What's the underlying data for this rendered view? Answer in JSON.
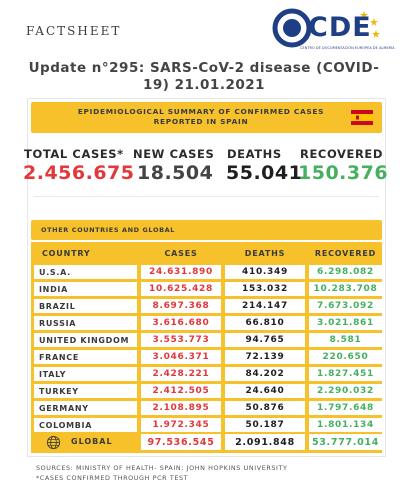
{
  "header": {
    "factsheet_label": "FACTSHEET",
    "logo_text": "CDE",
    "logo_subtitle": "CENTRO DE DOCUMENTACIÓN EUROPEA DE ALMERÍA",
    "update_title": "Update n°295: SARS-CoV-2 disease (COVID-19) 21.01.2021"
  },
  "epi": {
    "banner_title": "EPIDEMIOLOGICAL SUMMARY OF CONFIRMED CASES REPORTED IN SPAIN",
    "flag_icon": "spain-flag-icon",
    "labels": {
      "total": "TOTAL CASES*",
      "new": "NEW CASES",
      "deaths": "DEATHS",
      "recovered": "RECOVERED"
    },
    "values": {
      "total": "2.456.675",
      "new": "18.504",
      "deaths": "55.041",
      "recovered": "150.376"
    }
  },
  "other": {
    "banner_title": "OTHER COUNTRIES AND GLOBAL",
    "headers": {
      "country": "COUNTRY",
      "cases": "CASES",
      "deaths": "DEATHS",
      "recovered": "RECOVERED"
    },
    "rows": [
      {
        "country": "U.S.A.",
        "cases": "24.631.890",
        "deaths": "410.349",
        "recovered": "6.298.082"
      },
      {
        "country": "INDIA",
        "cases": "10.625.428",
        "deaths": "153.032",
        "recovered": "10.283.708"
      },
      {
        "country": "BRAZIL",
        "cases": "8.697.368",
        "deaths": "214.147",
        "recovered": "7.673.092"
      },
      {
        "country": "RUSSIA",
        "cases": "3.616.680",
        "deaths": "66.810",
        "recovered": "3.021.861"
      },
      {
        "country": "UNITED KINGDOM",
        "cases": "3.553.773",
        "deaths": "94.765",
        "recovered": "8.581"
      },
      {
        "country": "FRANCE",
        "cases": "3.046.371",
        "deaths": "72.139",
        "recovered": "220.650"
      },
      {
        "country": "ITALY",
        "cases": "2.428.221",
        "deaths": "84.202",
        "recovered": "1.827.451"
      },
      {
        "country": "TURKEY",
        "cases": "2.412.505",
        "deaths": "24.640",
        "recovered": "2.290.032"
      },
      {
        "country": "GERMANY",
        "cases": "2.108.895",
        "deaths": "50.876",
        "recovered": "1.797.648"
      },
      {
        "country": "COLOMBIA",
        "cases": "1.972.345",
        "deaths": "50.187",
        "recovered": "1.801.134"
      }
    ],
    "global": {
      "label": "GLOBAL",
      "icon": "globe-icon",
      "cases": "97.536.545",
      "deaths": "2.091.848",
      "recovered": "53.777.014"
    }
  },
  "footer": {
    "sources": "SOURCES: MINISTRY OF HEALTH- SPAIN; JOHN HOPKINS UNIVERSITY",
    "note": "*CASES CONFIRMED THROUGH PCR TEST"
  },
  "colors": {
    "accent_yellow": "#f6c12a",
    "cases_red": "#e3373a",
    "recovered_green": "#45b060",
    "logo_blue": "#1f3f84"
  }
}
